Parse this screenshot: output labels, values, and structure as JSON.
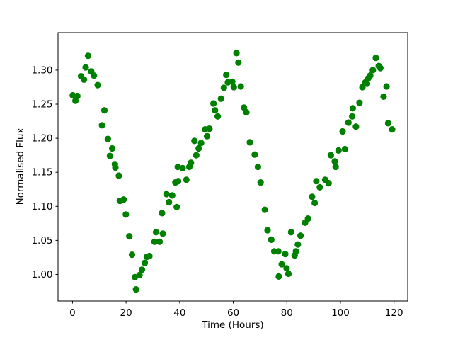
{
  "figure": {
    "background_color": "#ffffff",
    "spine_color": "#000000",
    "tick_color": "#000000"
  },
  "chart_data": {
    "type": "scatter",
    "title": "",
    "xlabel": "Time (Hours)",
    "ylabel": "Normalised Flux",
    "marker_color": "#008000",
    "marker_radius_px": 4.6,
    "grid": false,
    "legend": null,
    "xlim": [
      -5.4,
      125.1
    ],
    "ylim": [
      0.961,
      1.355
    ],
    "xticks": [
      0,
      20,
      40,
      60,
      80,
      100,
      120
    ],
    "xtick_labels": [
      "0",
      "20",
      "40",
      "60",
      "80",
      "100",
      "120"
    ],
    "yticks": [
      1.0,
      1.05,
      1.1,
      1.15,
      1.2,
      1.25,
      1.3
    ],
    "ytick_labels": [
      "1.00",
      "1.05",
      "1.10",
      "1.15",
      "1.20",
      "1.25",
      "1.30"
    ],
    "points": [
      [
        0.1,
        1.263
      ],
      [
        1.1,
        1.255
      ],
      [
        1.8,
        1.262
      ],
      [
        3.2,
        1.291
      ],
      [
        4.3,
        1.286
      ],
      [
        4.9,
        1.304
      ],
      [
        5.8,
        1.321
      ],
      [
        7.0,
        1.298
      ],
      [
        8.0,
        1.292
      ],
      [
        9.4,
        1.278
      ],
      [
        11.0,
        1.219
      ],
      [
        11.9,
        1.241
      ],
      [
        13.2,
        1.199
      ],
      [
        14.0,
        1.174
      ],
      [
        14.8,
        1.185
      ],
      [
        15.8,
        1.162
      ],
      [
        16.0,
        1.157
      ],
      [
        17.3,
        1.145
      ],
      [
        17.7,
        1.108
      ],
      [
        19.1,
        1.11
      ],
      [
        19.9,
        1.088
      ],
      [
        21.2,
        1.056
      ],
      [
        22.2,
        1.029
      ],
      [
        23.3,
        0.996
      ],
      [
        23.7,
        0.978
      ],
      [
        25.0,
        0.999
      ],
      [
        25.9,
        1.007
      ],
      [
        27.0,
        1.017
      ],
      [
        27.8,
        1.026
      ],
      [
        28.7,
        1.027
      ],
      [
        30.6,
        1.048
      ],
      [
        31.2,
        1.062
      ],
      [
        32.5,
        1.048
      ],
      [
        33.4,
        1.09
      ],
      [
        33.7,
        1.06
      ],
      [
        35.1,
        1.118
      ],
      [
        36.0,
        1.106
      ],
      [
        37.2,
        1.116
      ],
      [
        38.4,
        1.135
      ],
      [
        38.9,
        1.099
      ],
      [
        39.3,
        1.158
      ],
      [
        39.4,
        1.137
      ],
      [
        41.1,
        1.156
      ],
      [
        42.5,
        1.139
      ],
      [
        43.6,
        1.158
      ],
      [
        44.2,
        1.164
      ],
      [
        45.5,
        1.196
      ],
      [
        46.2,
        1.175
      ],
      [
        47.1,
        1.185
      ],
      [
        48.0,
        1.193
      ],
      [
        49.5,
        1.213
      ],
      [
        50.2,
        1.203
      ],
      [
        51.1,
        1.214
      ],
      [
        52.6,
        1.251
      ],
      [
        53.2,
        1.241
      ],
      [
        54.2,
        1.232
      ],
      [
        55.4,
        1.258
      ],
      [
        56.5,
        1.274
      ],
      [
        57.4,
        1.293
      ],
      [
        58.0,
        1.282
      ],
      [
        59.6,
        1.283
      ],
      [
        60.2,
        1.275
      ],
      [
        61.2,
        1.325
      ],
      [
        61.9,
        1.311
      ],
      [
        62.8,
        1.276
      ],
      [
        64.0,
        1.245
      ],
      [
        64.9,
        1.238
      ],
      [
        66.2,
        1.194
      ],
      [
        68.0,
        1.176
      ],
      [
        69.2,
        1.158
      ],
      [
        70.2,
        1.135
      ],
      [
        71.8,
        1.095
      ],
      [
        72.8,
        1.065
      ],
      [
        74.2,
        1.051
      ],
      [
        75.3,
        1.034
      ],
      [
        76.8,
        1.034
      ],
      [
        77.0,
        0.997
      ],
      [
        78.1,
        1.015
      ],
      [
        79.4,
        1.03
      ],
      [
        79.9,
        1.009
      ],
      [
        80.6,
        1.001
      ],
      [
        81.6,
        1.062
      ],
      [
        82.9,
        1.028
      ],
      [
        83.4,
        1.034
      ],
      [
        84.1,
        1.044
      ],
      [
        85.1,
        1.057
      ],
      [
        86.8,
        1.076
      ],
      [
        87.9,
        1.082
      ],
      [
        89.4,
        1.114
      ],
      [
        90.4,
        1.105
      ],
      [
        91.0,
        1.137
      ],
      [
        92.3,
        1.128
      ],
      [
        94.3,
        1.139
      ],
      [
        95.6,
        1.134
      ],
      [
        96.4,
        1.175
      ],
      [
        97.9,
        1.166
      ],
      [
        98.2,
        1.158
      ],
      [
        99.3,
        1.182
      ],
      [
        100.8,
        1.21
      ],
      [
        101.7,
        1.184
      ],
      [
        103.0,
        1.223
      ],
      [
        104.4,
        1.232
      ],
      [
        104.6,
        1.244
      ],
      [
        105.8,
        1.217
      ],
      [
        107.1,
        1.252
      ],
      [
        108.2,
        1.275
      ],
      [
        109.3,
        1.282
      ],
      [
        109.9,
        1.28
      ],
      [
        110.4,
        1.288
      ],
      [
        111.1,
        1.292
      ],
      [
        112.1,
        1.3
      ],
      [
        113.2,
        1.318
      ],
      [
        114.3,
        1.306
      ],
      [
        114.9,
        1.303
      ],
      [
        116.1,
        1.261
      ],
      [
        117.2,
        1.276
      ],
      [
        117.8,
        1.222
      ],
      [
        119.3,
        1.213
      ]
    ]
  }
}
